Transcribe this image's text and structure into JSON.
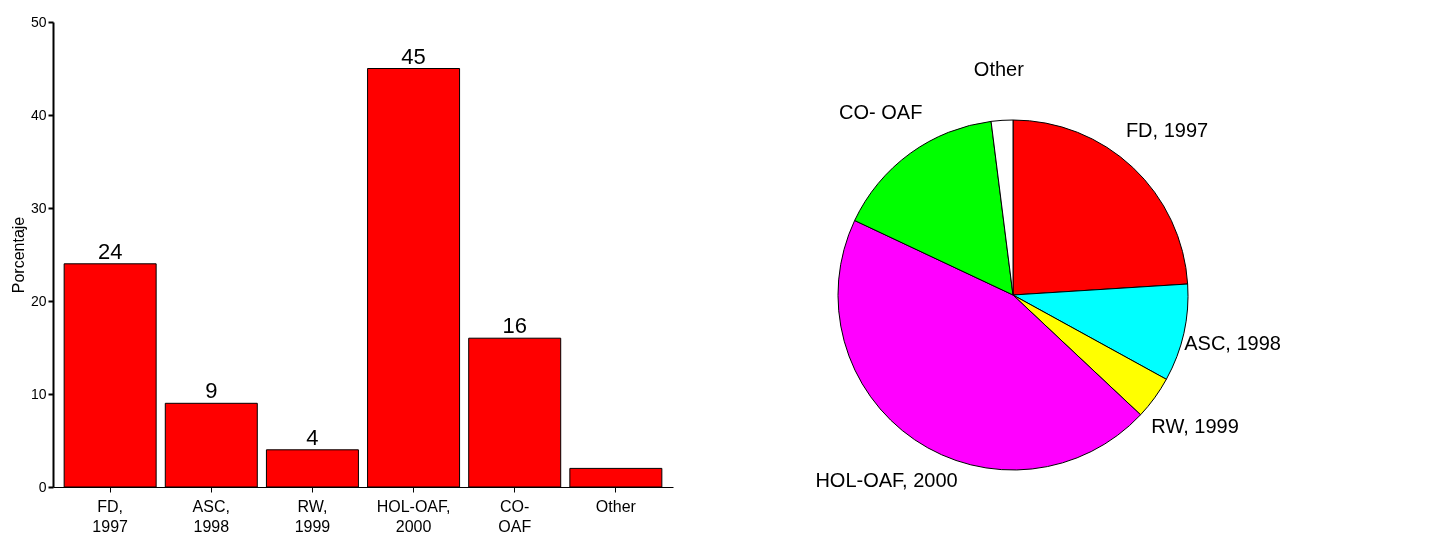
{
  "chart_data": [
    {
      "type": "bar",
      "categories": [
        "FD, 1997",
        "ASC, 1998",
        "RW, 1999",
        "HOL-OAF, 2000",
        "CO- OAF",
        "Other"
      ],
      "values": [
        24,
        9,
        4,
        45,
        16,
        2
      ],
      "value_labels": [
        "24",
        "9",
        "4",
        "45",
        "16",
        null
      ],
      "color": "#ff0000",
      "ylabel": "Porcentaje",
      "ylim": [
        0,
        50
      ],
      "yticks": [
        0,
        10,
        20,
        30,
        40,
        50
      ]
    },
    {
      "type": "pie",
      "categories": [
        "FD, 1997",
        "ASC, 1998",
        "RW, 1999",
        "HOL-OAF, 2000",
        "CO- OAF",
        "Other"
      ],
      "values": [
        24,
        9,
        4,
        45,
        16,
        2
      ],
      "colors": [
        "#ff0000",
        "#00ffff",
        "#ffff00",
        "#ff00ff",
        "#00ff00",
        "#ffffff"
      ]
    }
  ]
}
